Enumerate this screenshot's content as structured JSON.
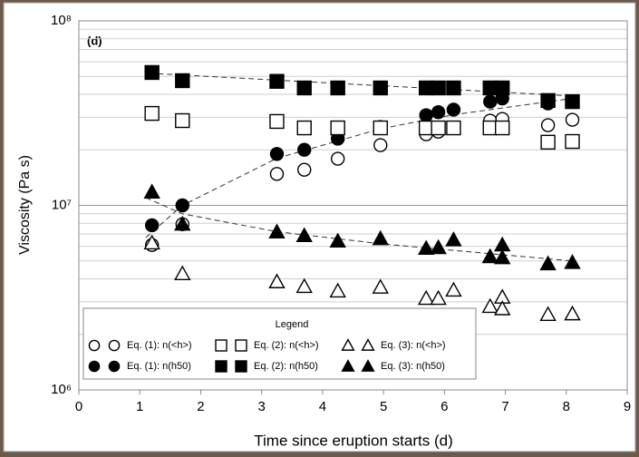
{
  "chart_data": {
    "type": "scatter",
    "annotation": "(d)",
    "x_label": "Time since eruption starts (d)",
    "y_label": "Viscosity (Pa s)",
    "xlim": [
      0,
      9
    ],
    "xticks": [
      0,
      1,
      2,
      3,
      4,
      5,
      6,
      7,
      8,
      9
    ],
    "ylim": [
      1000000,
      100000000
    ],
    "yscale": "log",
    "yticks": [
      {
        "value": 1000000,
        "label": "10⁶"
      },
      {
        "value": 10000000,
        "label": "10⁷"
      },
      {
        "value": 100000000,
        "label": "10⁸"
      }
    ],
    "yminor": [
      2000000,
      3000000,
      4000000,
      5000000,
      6000000,
      7000000,
      8000000,
      9000000,
      20000000,
      30000000,
      40000000,
      50000000,
      60000000,
      70000000,
      80000000,
      90000000
    ],
    "grid": true,
    "legend_title": "Legend",
    "legend": "lower-left",
    "series": [
      {
        "name": "Eq. (1): n(<h>)",
        "marker": "circle",
        "filled": false,
        "color": "#000000",
        "x": [
          1.2,
          1.7,
          3.25,
          3.7,
          4.25,
          4.95,
          5.7,
          5.9,
          6.15,
          6.75,
          6.95,
          7.7,
          8.1
        ],
        "values": [
          6100000,
          7900000,
          14800000,
          15600000,
          17900000,
          21200000,
          24300000,
          25100000,
          26300000,
          28800000,
          29400000,
          27200000,
          29100000
        ]
      },
      {
        "name": "Eq. (1): n(h50)",
        "marker": "circle",
        "filled": true,
        "color": "#000000",
        "x": [
          1.2,
          1.7,
          3.25,
          3.7,
          4.25,
          4.95,
          5.7,
          5.9,
          6.15,
          6.75,
          6.95,
          7.7,
          8.1
        ],
        "values": [
          7800000,
          10000000,
          19000000,
          20000000,
          23000000,
          26600000,
          30800000,
          32000000,
          33000000,
          36500000,
          38000000,
          35700000,
          36500000
        ]
      },
      {
        "name": "Eq. (2): n(<h>)",
        "marker": "square",
        "filled": false,
        "color": "#000000",
        "x": [
          1.2,
          1.7,
          3.25,
          3.7,
          4.25,
          4.95,
          5.7,
          5.9,
          6.15,
          6.75,
          6.95,
          7.7,
          8.1
        ],
        "values": [
          31500000,
          28800000,
          28500000,
          26300000,
          26300000,
          26300000,
          26300000,
          26300000,
          26300000,
          26300000,
          26300000,
          22000000,
          22200000
        ]
      },
      {
        "name": "Eq. (2): n(h50)",
        "marker": "square",
        "filled": true,
        "color": "#000000",
        "x": [
          1.2,
          1.7,
          3.25,
          3.7,
          4.25,
          4.95,
          5.7,
          5.9,
          6.15,
          6.75,
          6.95,
          7.7,
          8.1
        ],
        "values": [
          52500000,
          47400000,
          47000000,
          43300000,
          43300000,
          43300000,
          43300000,
          43300000,
          43300000,
          43300000,
          43300000,
          37000000,
          36500000
        ]
      },
      {
        "name": "Eq. (3): n(<h>)",
        "marker": "triangle",
        "filled": false,
        "color": "#000000",
        "x": [
          1.2,
          1.7,
          3.25,
          3.7,
          4.25,
          4.95,
          5.7,
          5.9,
          6.15,
          6.75,
          6.95,
          6.95,
          7.7,
          8.1
        ],
        "values": [
          6250000,
          4260000,
          3850000,
          3630000,
          3430000,
          3600000,
          3130000,
          3130000,
          3470000,
          2830000,
          3180000,
          2750000,
          2560000,
          2580000
        ]
      },
      {
        "name": "Eq. (3): n(h50)",
        "marker": "triangle",
        "filled": true,
        "color": "#000000",
        "x": [
          1.2,
          1.7,
          3.25,
          3.7,
          4.25,
          4.95,
          5.7,
          5.9,
          6.15,
          6.75,
          6.95,
          6.95,
          7.7,
          8.1
        ],
        "values": [
          11800000,
          7900000,
          7170000,
          6850000,
          6400000,
          6600000,
          5850000,
          5900000,
          6500000,
          5270000,
          6100000,
          5200000,
          4820000,
          4900000
        ]
      }
    ],
    "trendlines": [
      {
        "x": [
          1.15,
          8.2
        ],
        "values": [
          52000000,
          39000000
        ]
      },
      {
        "x": [
          1.1,
          1.7,
          3.25,
          4.95,
          6.15,
          8.1
        ],
        "values": [
          6700000,
          10000000,
          18000000,
          26000000,
          31000000,
          38000000
        ]
      },
      {
        "x": [
          1.1,
          1.7,
          3.25,
          4.95,
          6.15,
          8.1
        ],
        "values": [
          11000000,
          9000000,
          7200000,
          6200000,
          5700000,
          5000000
        ]
      }
    ]
  }
}
